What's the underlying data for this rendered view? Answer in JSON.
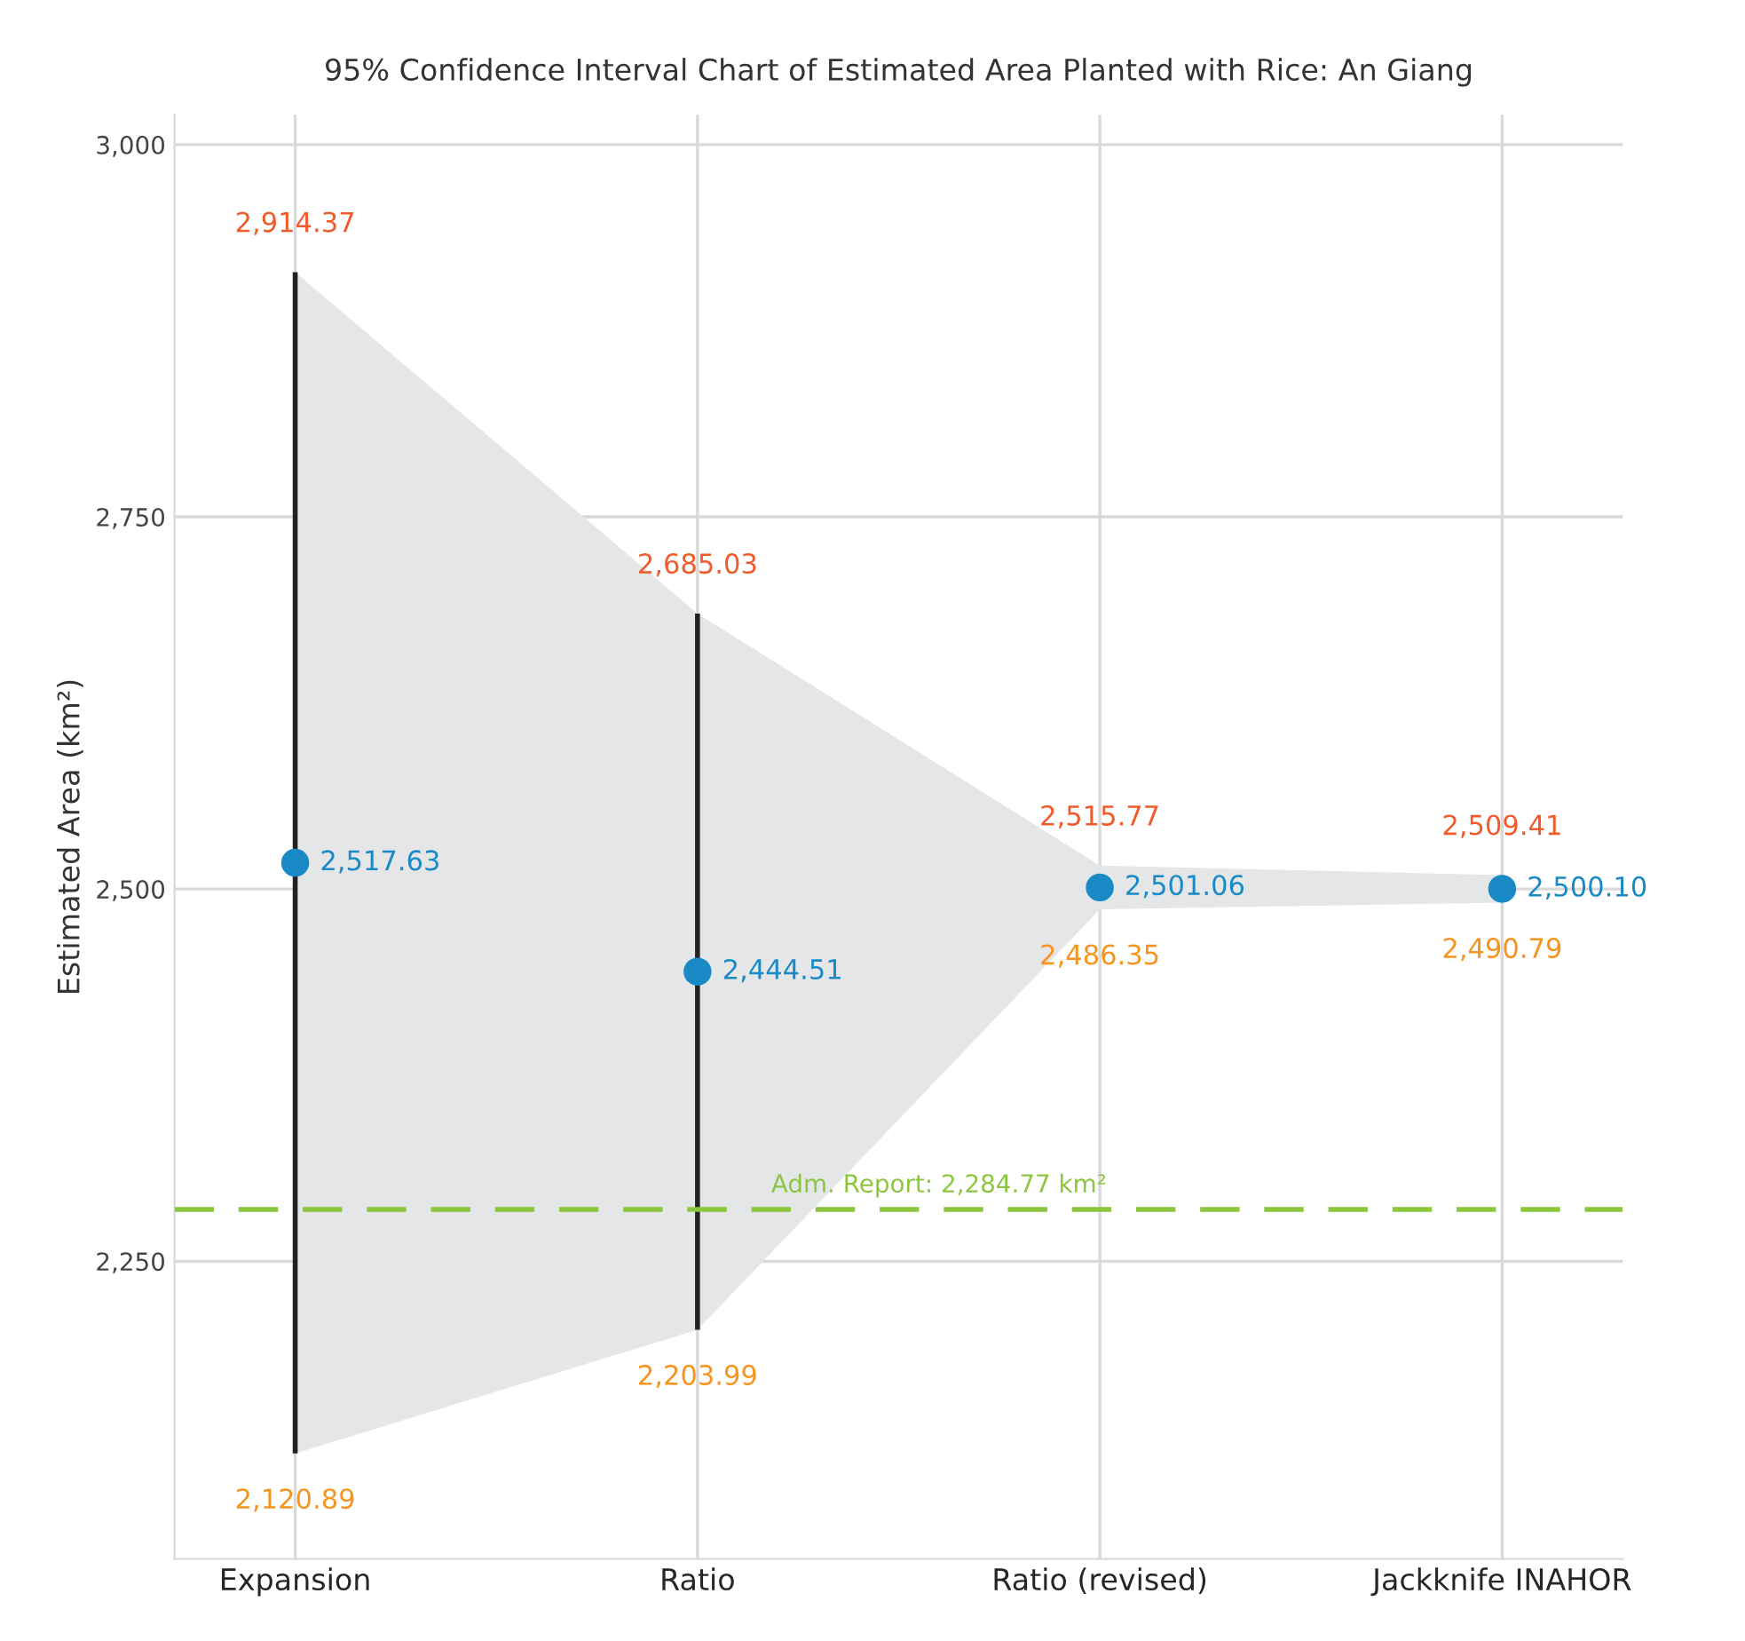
{
  "chart_data": {
    "type": "scatter",
    "title": "95% Confidence Interval Chart of Estimated Area Planted with Rice: An Giang",
    "ylabel": "Estimated Area (km²)",
    "categories": [
      "Expansion",
      "Ratio",
      "Ratio (revised)",
      "Jackknife INAHOR"
    ],
    "series": [
      {
        "color": "#1a8ac6",
        "values": [
          2517.63,
          2444.51,
          2501.06,
          2500.1
        ],
        "lower": [
          2120.89,
          2203.99,
          2486.35,
          2490.79
        ],
        "upper": [
          2914.37,
          2685.03,
          2515.77,
          2509.41
        ],
        "errors": [
          [
            2120.89,
            2914.37
          ],
          [
            2203.99,
            2685.03
          ],
          null,
          null
        ],
        "value_labels": [
          "2,517.63",
          "2,444.51",
          "2,501.06",
          "2,500.10"
        ]
      }
    ],
    "ylim": [
      2050,
      3020
    ],
    "yticks": [
      {
        "value": 2250,
        "label": "2,250"
      },
      {
        "value": 2500,
        "label": "2,500"
      },
      {
        "value": 2750,
        "label": "2,750"
      },
      {
        "value": 3000,
        "label": "3,000"
      }
    ],
    "grid": true,
    "marker": "circle",
    "ref_lines": [
      {
        "axis": "y",
        "value": 2284.77,
        "label": "Adm. Report: 2,284.77 km²",
        "color": "#8cc63f",
        "line_style": "dashed"
      }
    ],
    "annotations": [
      {
        "text": "2,914.37",
        "x": "Expansion",
        "y": 2914.37
      },
      {
        "text": "2,120.89",
        "x": "Expansion",
        "y": 2120.89
      },
      {
        "text": "2,685.03",
        "x": "Ratio",
        "y": 2685.03
      },
      {
        "text": "2,203.99",
        "x": "Ratio",
        "y": 2203.99
      },
      {
        "text": "2,515.77",
        "x": "Ratio (revised)",
        "y": 2515.77
      },
      {
        "text": "2,486.35",
        "x": "Ratio (revised)",
        "y": 2486.35
      },
      {
        "text": "2,509.41",
        "x": "Jackknife INAHOR",
        "y": 2509.41
      },
      {
        "text": "2,490.79",
        "x": "Jackknife INAHOR",
        "y": 2490.79
      }
    ]
  }
}
